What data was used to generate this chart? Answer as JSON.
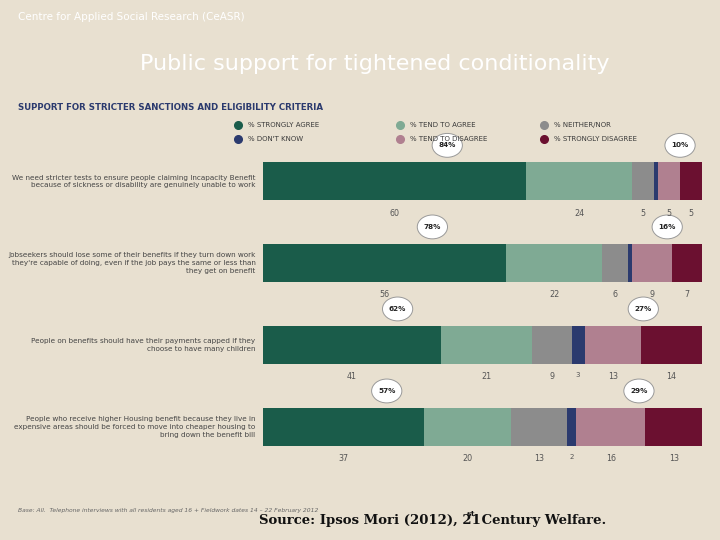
{
  "title": "Public support for tightened conditionality",
  "header": "Centre for Applied Social Research (CeASR)",
  "subtitle": "SUPPORT FOR STRICTER SANCTIONS AND ELIGIBILITY CRITERIA",
  "base_note": "Base: All.  Telephone interviews with all residents aged 16 + Fieldwork dates 14 – 22 February 2012",
  "categories": [
    "We need stricter tests to ensure people claiming Incapacity Benefit\nbecause of sickness or disability are genuinely unable to work",
    "Jobseekers should lose some of their benefits if they turn down work\nthey're capable of doing, even if the job pays the same or less than\nthey get on benefit",
    "People on benefits should have their payments capped if they\nchoose to have many children",
    "People who receive higher Housing benefit because they live in\nexpensive areas should be forced to move into cheaper housing to\nbring down the benefit bill"
  ],
  "data": [
    [
      60,
      24,
      5,
      1,
      5,
      5
    ],
    [
      56,
      22,
      6,
      1,
      9,
      7
    ],
    [
      41,
      21,
      9,
      3,
      13,
      14
    ],
    [
      37,
      20,
      13,
      2,
      16,
      13
    ]
  ],
  "agree_pct": [
    84,
    78,
    62,
    57
  ],
  "disagree_pct": [
    10,
    16,
    27,
    29
  ],
  "colors": [
    "#1a5c4a",
    "#7faa94",
    "#8c8c8c",
    "#2b3a6e",
    "#b08090",
    "#6b1030"
  ],
  "legend_labels": [
    "% STRONGLY AGREE",
    "% TEND TO AGREE",
    "% NEITHER/NOR",
    "% DON'T KNOW",
    "% TEND TO DISAGREE",
    "% STRONGLY DISAGREE"
  ],
  "bg_header": "#1c1c1c",
  "bg_content": "#e8e0d0",
  "header_text_color": "#ffffff",
  "title_text_color": "#ffffff",
  "subtitle_color": "#2b3a6e"
}
